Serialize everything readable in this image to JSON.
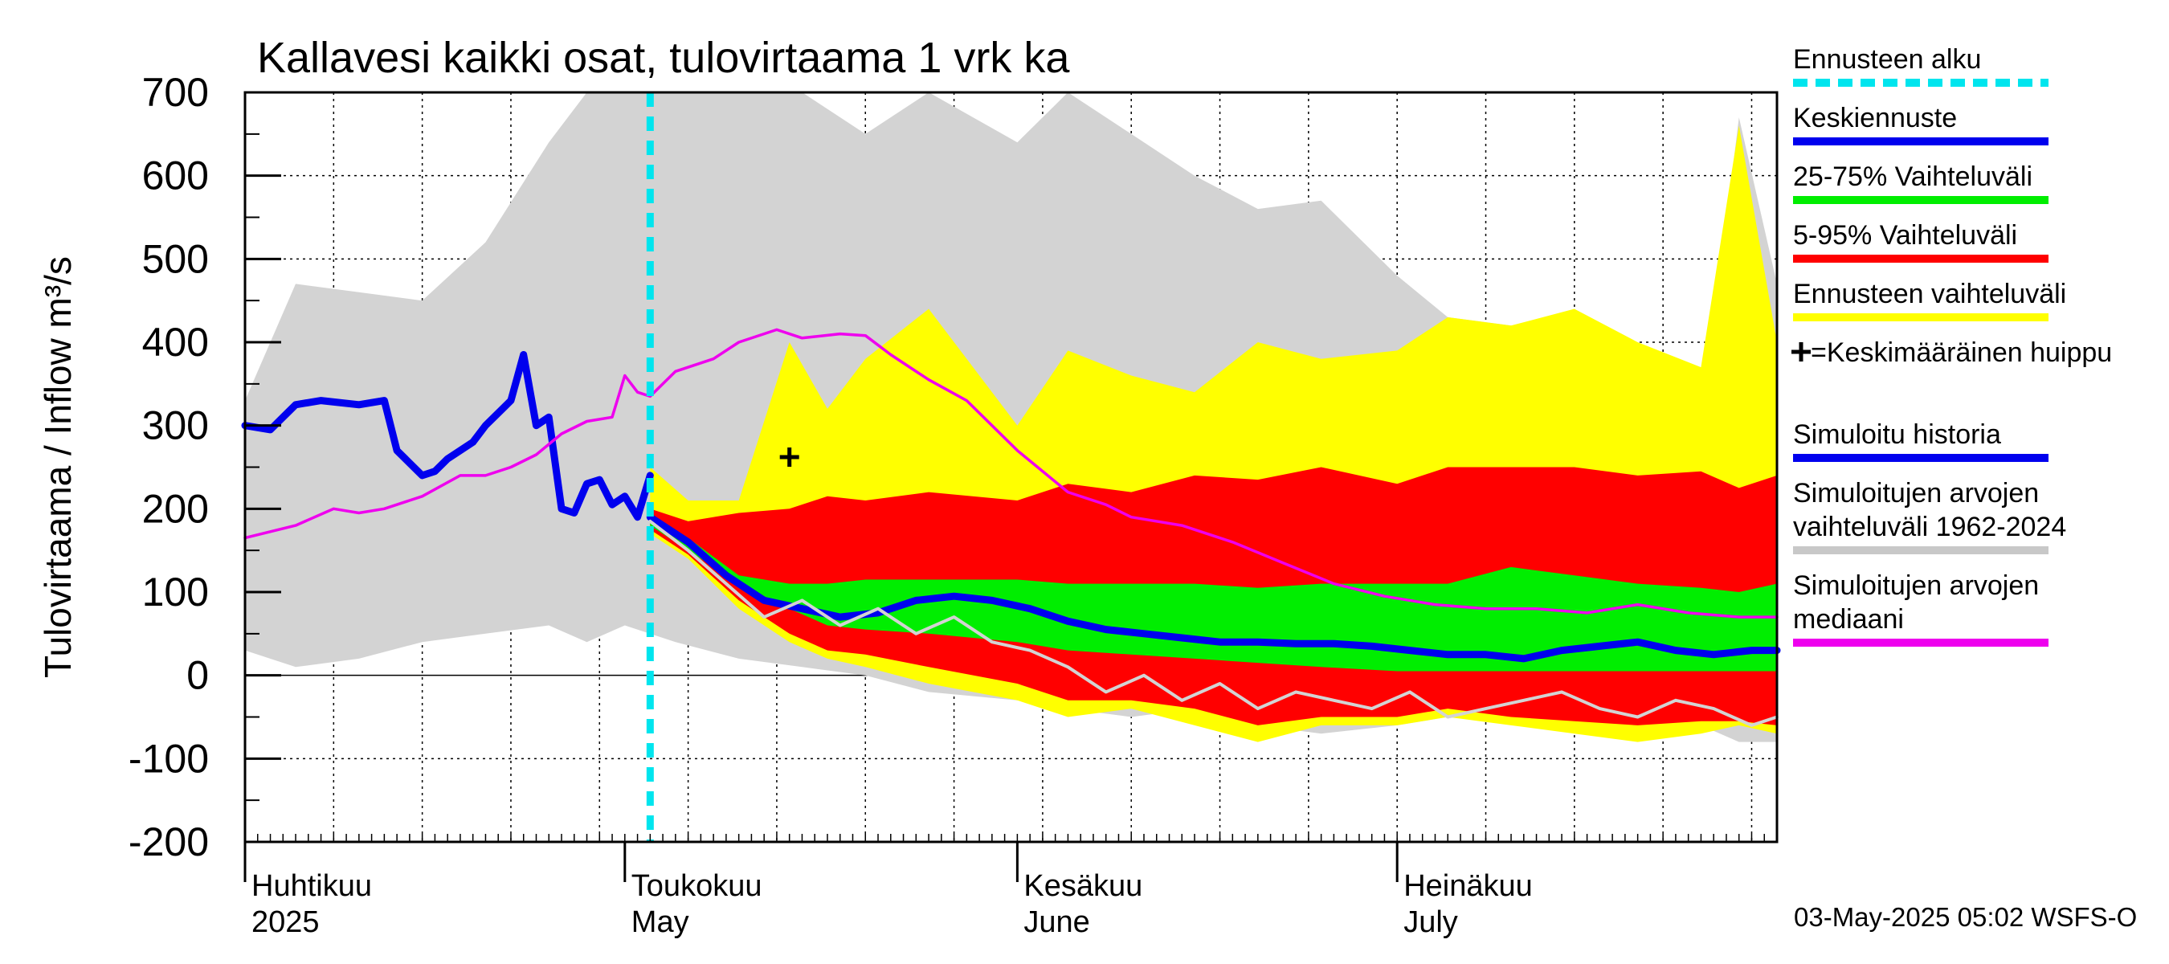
{
  "chart_data": {
    "type": "area",
    "title": "Kallavesi kaikki osat, tulovirtaama 1 vrk ka",
    "ylabel": "Tulovirtaama / Inflow    m³/s",
    "ylim": [
      -200,
      700
    ],
    "yticks": [
      700,
      600,
      500,
      400,
      300,
      200,
      100,
      0,
      -100,
      -200
    ],
    "xlim": [
      "2025-04-01",
      "2025-07-31"
    ],
    "months": [
      {
        "fi": "Huhtikuu",
        "en": "2025",
        "date": "2025-04-01"
      },
      {
        "fi": "Toukokuu",
        "en": "May",
        "date": "2025-05-01"
      },
      {
        "fi": "Kesäkuu",
        "en": "June",
        "date": "2025-06-01"
      },
      {
        "fi": "Heinäkuu",
        "en": "July",
        "date": "2025-07-01"
      }
    ],
    "forecast_start": "2025-05-03",
    "mean_peak": {
      "date": "2025-05-14",
      "value": 262
    },
    "footer": "03-May-2025 05:02 WSFS-O",
    "legend": [
      {
        "label": "Ennusteen alku",
        "color": "#00e5ee",
        "style": "dashed"
      },
      {
        "label": "Keskiennuste",
        "color": "#0000ee",
        "style": "line"
      },
      {
        "label": "25-75% Vaihteluväli",
        "color": "#00ee00",
        "style": "line"
      },
      {
        "label": "5-95% Vaihteluväli",
        "color": "#ff0000",
        "style": "line"
      },
      {
        "label": "Ennusteen vaihteluväli",
        "color": "#ffff00",
        "style": "line"
      },
      {
        "label": "+=Keskimääräinen huippu",
        "color": "#000000",
        "style": "marker"
      },
      {
        "label": "Simuloitu historia",
        "color": "#0000ee",
        "style": "line"
      },
      {
        "label": "Simuloitujen arvojen vaihteluväli 1962-2024",
        "color": "#c8c8c8",
        "style": "line"
      },
      {
        "label": "Simuloitujen arvojen mediaani",
        "color": "#ee00ee",
        "style": "line"
      }
    ],
    "series": [
      {
        "name": "Simuloitujen arvojen vaihteluväli 1962-2024",
        "kind": "band",
        "color": "#d3d3d3",
        "x": [
          "2025-04-01",
          "2025-04-05",
          "2025-04-10",
          "2025-04-15",
          "2025-04-20",
          "2025-04-25",
          "2025-04-28",
          "2025-05-01",
          "2025-05-05",
          "2025-05-10",
          "2025-05-15",
          "2025-05-20",
          "2025-05-25",
          "2025-06-01",
          "2025-06-05",
          "2025-06-10",
          "2025-06-15",
          "2025-06-20",
          "2025-06-25",
          "2025-07-01",
          "2025-07-05",
          "2025-07-10",
          "2025-07-15",
          "2025-07-20",
          "2025-07-25",
          "2025-07-28",
          "2025-07-31"
        ],
        "low": [
          30,
          10,
          20,
          40,
          50,
          60,
          40,
          60,
          40,
          20,
          10,
          0,
          -20,
          -30,
          -40,
          -50,
          -40,
          -60,
          -70,
          -60,
          -50,
          -50,
          -40,
          -50,
          -60,
          -80,
          -80
        ],
        "high": [
          330,
          470,
          460,
          450,
          520,
          640,
          700,
          700,
          700,
          700,
          700,
          650,
          700,
          640,
          700,
          650,
          600,
          560,
          570,
          480,
          430,
          420,
          430,
          340,
          300,
          670,
          470
        ]
      },
      {
        "name": "Ennusteen vaihteluväli",
        "kind": "band",
        "color": "#ffff00",
        "x": [
          "2025-05-03",
          "2025-05-06",
          "2025-05-10",
          "2025-05-14",
          "2025-05-17",
          "2025-05-20",
          "2025-05-25",
          "2025-06-01",
          "2025-06-05",
          "2025-06-10",
          "2025-06-15",
          "2025-06-20",
          "2025-06-25",
          "2025-07-01",
          "2025-07-05",
          "2025-07-10",
          "2025-07-15",
          "2025-07-20",
          "2025-07-25",
          "2025-07-28",
          "2025-07-31"
        ],
        "low": [
          170,
          140,
          80,
          40,
          20,
          10,
          -10,
          -30,
          -50,
          -40,
          -60,
          -80,
          -60,
          -60,
          -50,
          -60,
          -70,
          -80,
          -70,
          -60,
          -70
        ],
        "high": [
          250,
          210,
          210,
          400,
          320,
          380,
          440,
          300,
          390,
          360,
          340,
          400,
          380,
          390,
          430,
          420,
          440,
          400,
          370,
          660,
          400
        ]
      },
      {
        "name": "5-95% Vaihteluväli",
        "kind": "band",
        "color": "#ff0000",
        "x": [
          "2025-05-03",
          "2025-05-06",
          "2025-05-10",
          "2025-05-14",
          "2025-05-17",
          "2025-05-20",
          "2025-05-25",
          "2025-06-01",
          "2025-06-05",
          "2025-06-10",
          "2025-06-15",
          "2025-06-20",
          "2025-06-25",
          "2025-07-01",
          "2025-07-05",
          "2025-07-10",
          "2025-07-15",
          "2025-07-20",
          "2025-07-25",
          "2025-07-28",
          "2025-07-31"
        ],
        "low": [
          175,
          145,
          90,
          50,
          30,
          25,
          10,
          -10,
          -30,
          -30,
          -40,
          -60,
          -50,
          -50,
          -40,
          -50,
          -55,
          -60,
          -55,
          -55,
          -60
        ],
        "high": [
          200,
          185,
          195,
          200,
          215,
          210,
          220,
          210,
          230,
          220,
          240,
          235,
          250,
          230,
          250,
          250,
          250,
          240,
          245,
          225,
          240
        ]
      },
      {
        "name": "25-75% Vaihteluväli",
        "kind": "band",
        "color": "#00ee00",
        "x": [
          "2025-05-03",
          "2025-05-06",
          "2025-05-10",
          "2025-05-14",
          "2025-05-17",
          "2025-05-20",
          "2025-05-25",
          "2025-06-01",
          "2025-06-05",
          "2025-06-10",
          "2025-06-15",
          "2025-06-20",
          "2025-06-25",
          "2025-07-01",
          "2025-07-05",
          "2025-07-10",
          "2025-07-15",
          "2025-07-20",
          "2025-07-25",
          "2025-07-28",
          "2025-07-31"
        ],
        "low": [
          180,
          150,
          110,
          80,
          60,
          55,
          50,
          40,
          30,
          25,
          20,
          15,
          10,
          5,
          5,
          5,
          5,
          5,
          5,
          5,
          5
        ],
        "high": [
          185,
          165,
          120,
          110,
          110,
          115,
          115,
          115,
          110,
          110,
          110,
          105,
          110,
          110,
          110,
          130,
          120,
          110,
          105,
          100,
          110
        ]
      },
      {
        "name": "Simuloitu historia",
        "kind": "line",
        "color": "#0000ee",
        "width": 9,
        "x": [
          "2025-04-01",
          "2025-04-03",
          "2025-04-05",
          "2025-04-07",
          "2025-04-10",
          "2025-04-12",
          "2025-04-13",
          "2025-04-15",
          "2025-04-16",
          "2025-04-17",
          "2025-04-19",
          "2025-04-20",
          "2025-04-22",
          "2025-04-23",
          "2025-04-24",
          "2025-04-25",
          "2025-04-26",
          "2025-04-27",
          "2025-04-28",
          "2025-04-29",
          "2025-04-30",
          "2025-05-01",
          "2025-05-02",
          "2025-05-03"
        ],
        "y": [
          300,
          295,
          325,
          330,
          325,
          330,
          270,
          240,
          245,
          260,
          280,
          300,
          330,
          385,
          300,
          310,
          200,
          195,
          230,
          235,
          205,
          215,
          190,
          240
        ]
      },
      {
        "name": "Keskiennuste",
        "kind": "line",
        "color": "#0000ee",
        "width": 9,
        "x": [
          "2025-05-03",
          "2025-05-06",
          "2025-05-09",
          "2025-05-12",
          "2025-05-15",
          "2025-05-18",
          "2025-05-21",
          "2025-05-24",
          "2025-05-27",
          "2025-05-30",
          "2025-06-02",
          "2025-06-05",
          "2025-06-08",
          "2025-06-11",
          "2025-06-14",
          "2025-06-17",
          "2025-06-20",
          "2025-06-23",
          "2025-06-26",
          "2025-06-29",
          "2025-07-02",
          "2025-07-05",
          "2025-07-08",
          "2025-07-11",
          "2025-07-14",
          "2025-07-17",
          "2025-07-20",
          "2025-07-23",
          "2025-07-26",
          "2025-07-29",
          "2025-07-31"
        ],
        "y": [
          190,
          160,
          120,
          90,
          80,
          70,
          75,
          90,
          95,
          90,
          80,
          65,
          55,
          50,
          45,
          40,
          40,
          38,
          38,
          35,
          30,
          25,
          25,
          20,
          30,
          35,
          40,
          30,
          25,
          30,
          30
        ]
      },
      {
        "name": "Simuloitujen arvojen mediaani",
        "kind": "line",
        "color": "#ee00ee",
        "width": 3.5,
        "x": [
          "2025-04-01",
          "2025-04-05",
          "2025-04-08",
          "2025-04-10",
          "2025-04-12",
          "2025-04-15",
          "2025-04-18",
          "2025-04-20",
          "2025-04-22",
          "2025-04-24",
          "2025-04-26",
          "2025-04-28",
          "2025-04-30",
          "2025-05-01",
          "2025-05-02",
          "2025-05-03",
          "2025-05-05",
          "2025-05-08",
          "2025-05-10",
          "2025-05-13",
          "2025-05-15",
          "2025-05-18",
          "2025-05-20",
          "2025-05-22",
          "2025-05-25",
          "2025-05-28",
          "2025-06-01",
          "2025-06-05",
          "2025-06-08",
          "2025-06-10",
          "2025-06-14",
          "2025-06-18",
          "2025-06-22",
          "2025-06-26",
          "2025-06-30",
          "2025-07-04",
          "2025-07-08",
          "2025-07-12",
          "2025-07-16",
          "2025-07-20",
          "2025-07-24",
          "2025-07-28",
          "2025-07-31"
        ],
        "y": [
          165,
          180,
          200,
          195,
          200,
          215,
          240,
          240,
          250,
          265,
          290,
          305,
          310,
          360,
          340,
          335,
          365,
          380,
          400,
          415,
          405,
          410,
          408,
          385,
          355,
          330,
          270,
          220,
          205,
          190,
          180,
          160,
          135,
          110,
          95,
          85,
          80,
          80,
          75,
          85,
          75,
          70,
          70
        ]
      },
      {
        "name": "Simuloitujen arvojen mediaani (harmaa)",
        "kind": "line",
        "color": "#d3d3d3",
        "width": 4,
        "x": [
          "2025-05-03",
          "2025-05-06",
          "2025-05-09",
          "2025-05-12",
          "2025-05-15",
          "2025-05-18",
          "2025-05-21",
          "2025-05-24",
          "2025-05-27",
          "2025-05-30",
          "2025-06-02",
          "2025-06-05",
          "2025-06-08",
          "2025-06-11",
          "2025-06-14",
          "2025-06-17",
          "2025-06-20",
          "2025-06-23",
          "2025-06-26",
          "2025-06-29",
          "2025-07-02",
          "2025-07-05",
          "2025-07-08",
          "2025-07-11",
          "2025-07-14",
          "2025-07-17",
          "2025-07-20",
          "2025-07-23",
          "2025-07-26",
          "2025-07-29",
          "2025-07-31"
        ],
        "y": [
          185,
          150,
          110,
          70,
          90,
          60,
          80,
          50,
          70,
          40,
          30,
          10,
          -20,
          0,
          -30,
          -10,
          -40,
          -20,
          -30,
          -40,
          -20,
          -50,
          -40,
          -30,
          -20,
          -40,
          -50,
          -30,
          -40,
          -60,
          -50
        ]
      }
    ]
  }
}
